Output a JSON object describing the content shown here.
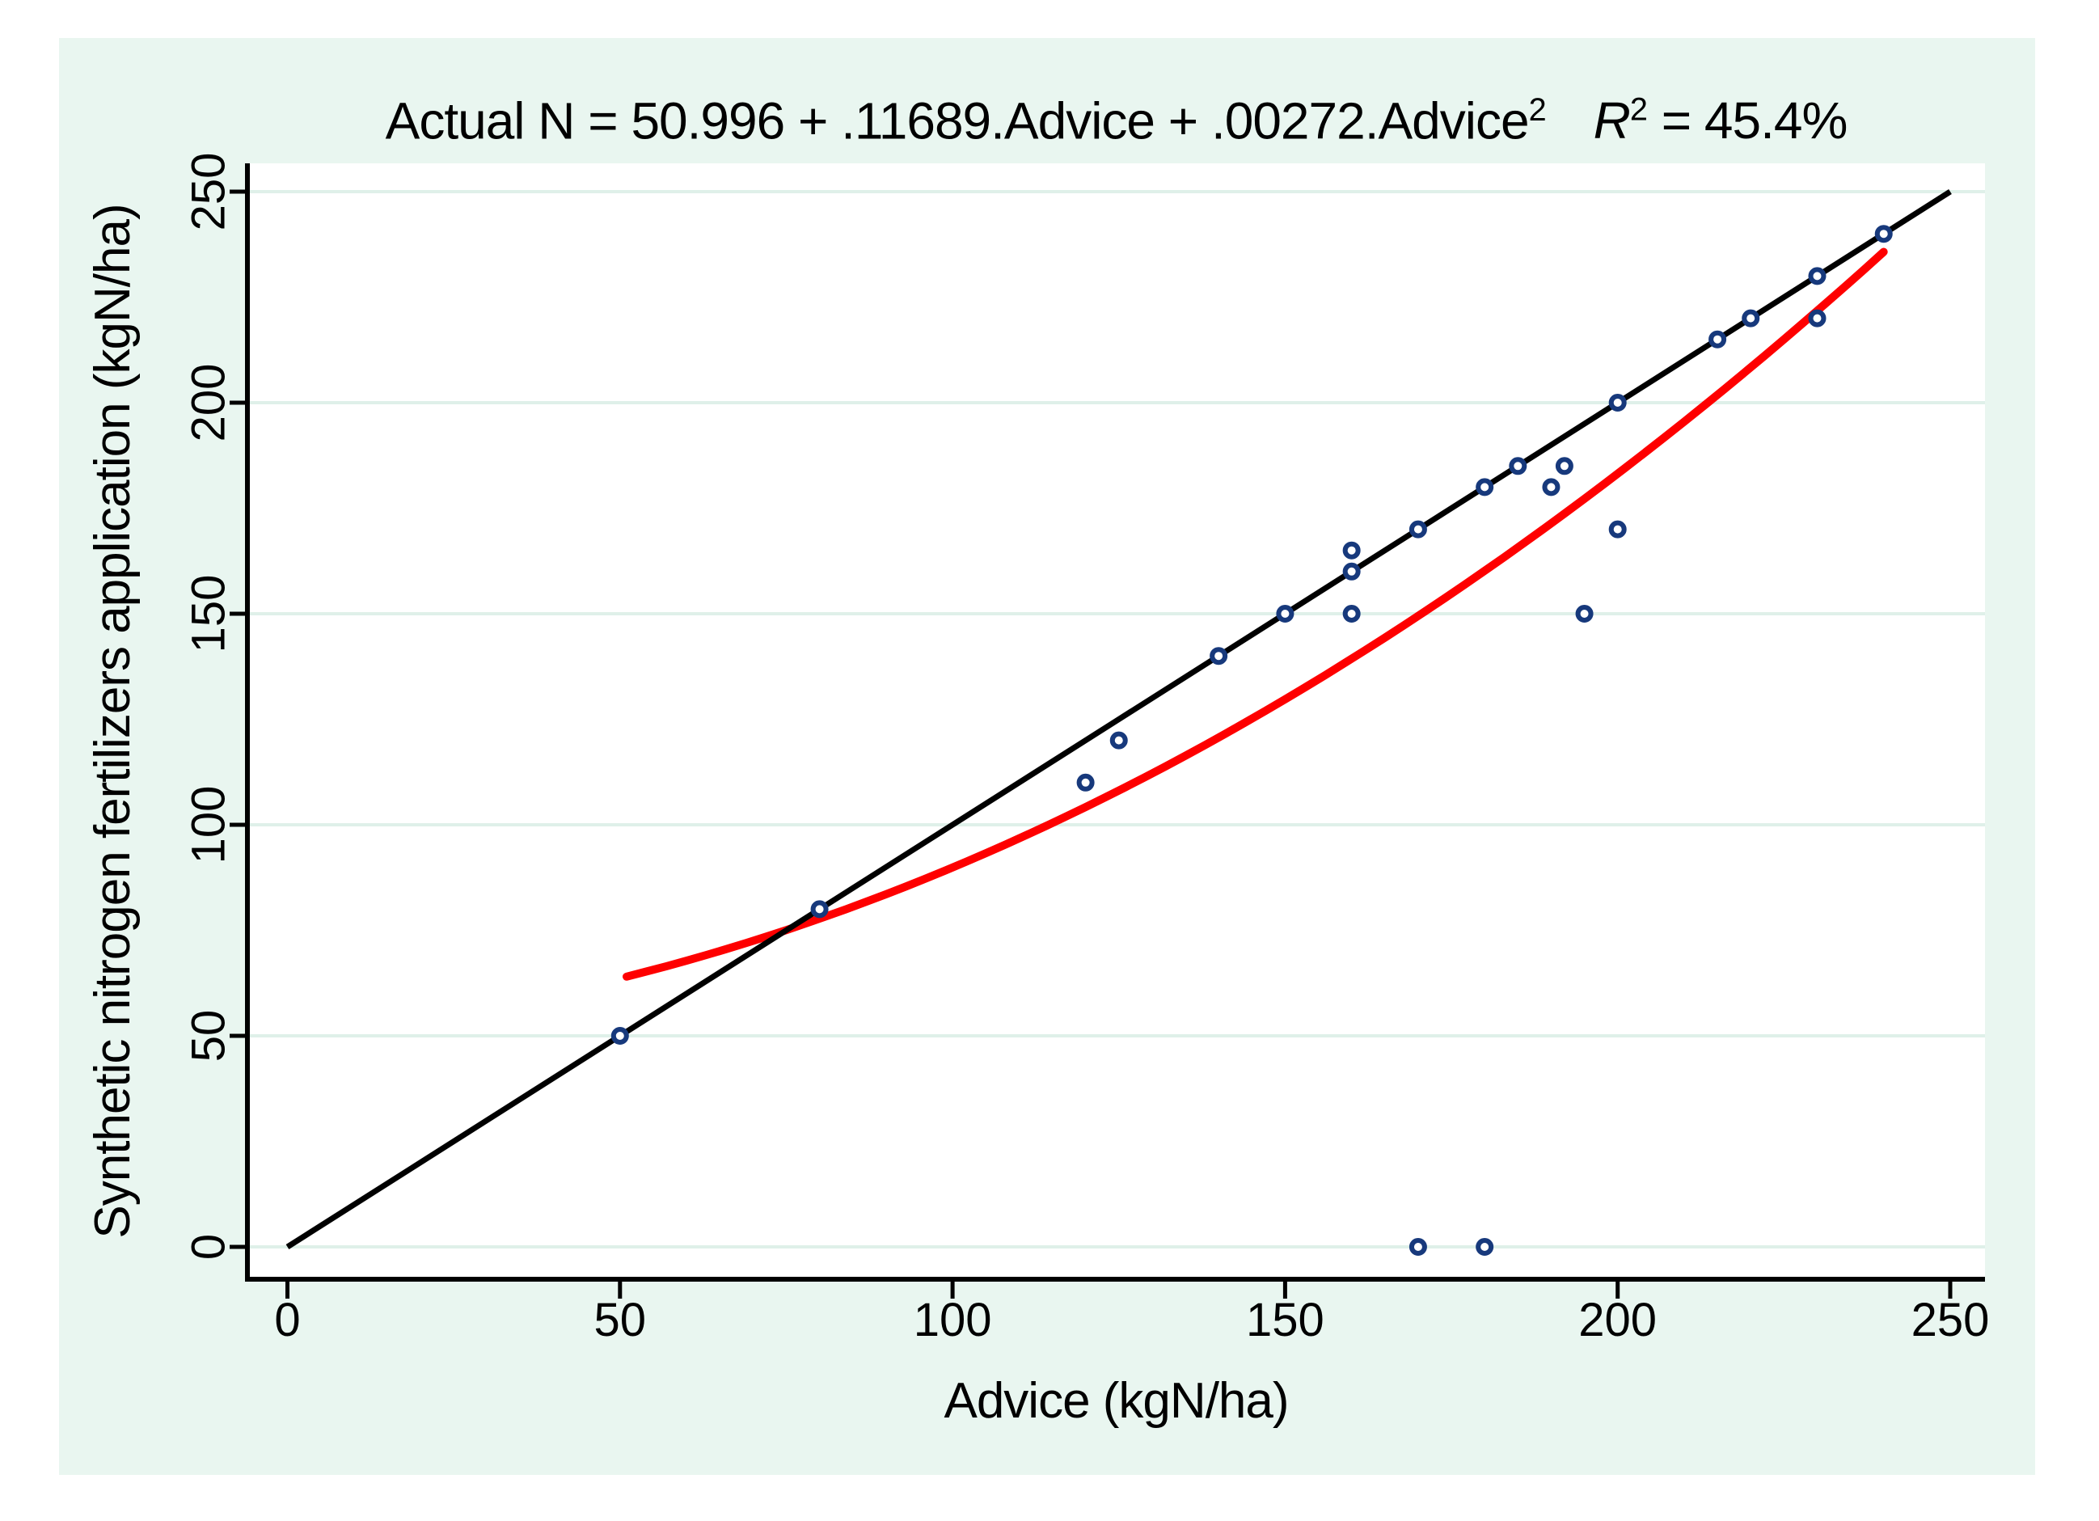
{
  "title": {
    "equation_prefix": "Actual N = 50.996 + .11689.Advice + .00272.Advice",
    "equation_sup": "2",
    "r_label": "R",
    "r_sup": "2",
    "r_suffix": " = 45.4%"
  },
  "axes": {
    "x": {
      "label": "Advice (kgN/ha)",
      "tick_labels": [
        "0",
        "50",
        "100",
        "150",
        "200",
        "250"
      ],
      "tick_values": [
        0,
        50,
        100,
        150,
        200,
        250
      ]
    },
    "y": {
      "label": "Synthetic nitrogen fertilizers application (kgN/ha)",
      "tick_labels": [
        "0",
        "50",
        "100",
        "150",
        "200",
        "250"
      ],
      "tick_values": [
        0,
        50,
        100,
        150,
        200,
        250
      ]
    }
  },
  "colors": {
    "page_background": "#ffffff",
    "canvas_background": "#e9f6f0",
    "plot_background": "#ffffff",
    "gridline": "#dff0e9",
    "axis": "#000000",
    "marker": "#17397c",
    "marker_fill": "#ffffff",
    "identity_line": "#000000",
    "fit_curve": "#fe0000",
    "text": "#000000"
  },
  "chart_data": {
    "type": "scatter",
    "title": "Actual N = 50.996 + .11689.Advice + .00272.Advice^2   R^2 = 45.4%",
    "xlabel": "Advice (kgN/ha)",
    "ylabel": "Synthetic nitrogen fertilizers application (kgN/ha)",
    "xlim": [
      0,
      250
    ],
    "ylim": [
      0,
      250
    ],
    "x_ticks": [
      0,
      50,
      100,
      150,
      200,
      250
    ],
    "y_ticks": [
      0,
      50,
      100,
      150,
      200,
      250
    ],
    "grid": "horizontal-only",
    "legend": "none",
    "points": [
      [
        50,
        50
      ],
      [
        80,
        80
      ],
      [
        120,
        110
      ],
      [
        125,
        120
      ],
      [
        140,
        140
      ],
      [
        150,
        150
      ],
      [
        160,
        150
      ],
      [
        160,
        160
      ],
      [
        160,
        165
      ],
      [
        170,
        0
      ],
      [
        170,
        170
      ],
      [
        180,
        0
      ],
      [
        180,
        180
      ],
      [
        185,
        185
      ],
      [
        190,
        180
      ],
      [
        192,
        185
      ],
      [
        195,
        150
      ],
      [
        200,
        170
      ],
      [
        200,
        200
      ],
      [
        215,
        215
      ],
      [
        220,
        220
      ],
      [
        230,
        220
      ],
      [
        230,
        230
      ],
      [
        240,
        240
      ]
    ],
    "marker": {
      "shape": "circle_hollow",
      "color": "#17397c"
    },
    "identity_line": {
      "from": [
        0,
        0
      ],
      "to": [
        250,
        250
      ],
      "color": "#000000"
    },
    "fit_curve": {
      "type": "quadratic",
      "equation": "Actual N = 50.996 + .11689.Advice + .00272.Advice^2",
      "intercept": 50.996,
      "b_linear": 0.11689,
      "b_quadratic": 0.00272,
      "x_domain": [
        51,
        240
      ],
      "color": "#fe0000"
    },
    "r_squared_pct": 45.4
  }
}
